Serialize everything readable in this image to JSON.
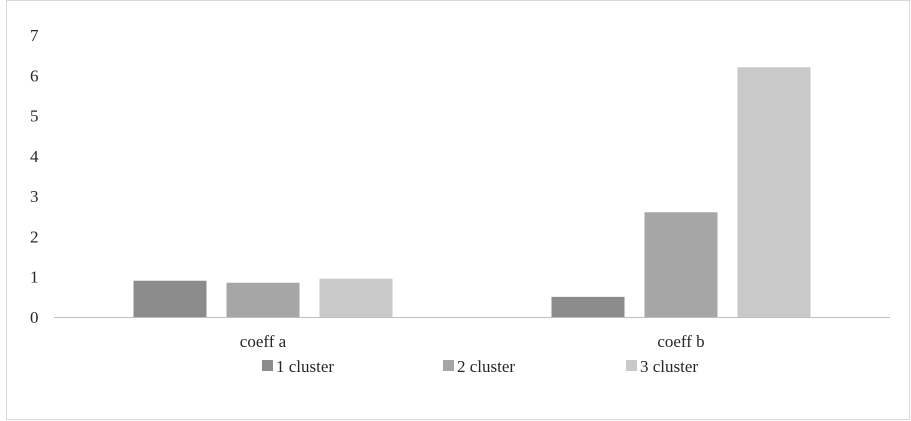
{
  "chart_data": {
    "type": "bar",
    "title": "",
    "xlabel": "",
    "ylabel": "",
    "categories": [
      "coeff a",
      "coeff b"
    ],
    "series": [
      {
        "name": "1 cluster",
        "values": [
          0.9,
          0.5
        ],
        "color": "#8c8c8c"
      },
      {
        "name": "2 cluster",
        "values": [
          0.85,
          2.6
        ],
        "color": "#a6a6a6"
      },
      {
        "name": "3 cluster",
        "values": [
          0.95,
          6.2
        ],
        "color": "#c9c9c9"
      }
    ],
    "ylim": [
      0,
      7
    ],
    "yticks": [
      "0",
      "1",
      "2",
      "3",
      "4",
      "5",
      "6",
      "7"
    ],
    "grid": false,
    "legend": "bottom"
  }
}
